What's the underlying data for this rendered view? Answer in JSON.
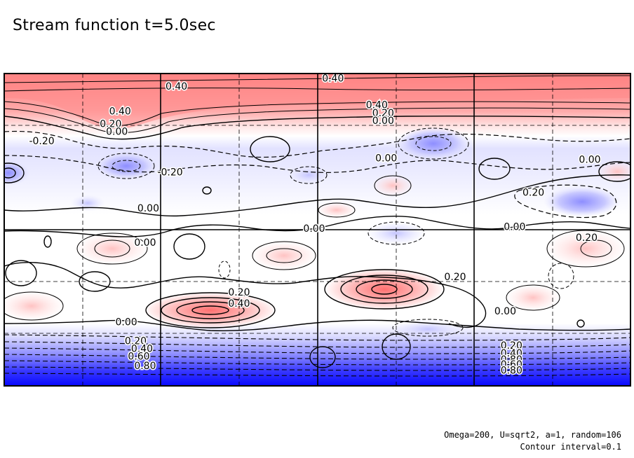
{
  "title": "Stream function t=5.0sec",
  "footer": {
    "params": "Omega=200, U=sqrt2, a=1, random=106",
    "contour": "Contour interval=0.1"
  },
  "chart_data": {
    "type": "heatmap",
    "title": "Stream function t=5.0sec",
    "field": "stream function",
    "contour_interval": 0.1,
    "value_range": [
      -1.0,
      0.5
    ],
    "colormap": {
      "negative": "#1010ff",
      "zero": "#ffffff",
      "positive": "#ff6060"
    },
    "negative_contours_dashed": true,
    "grid": true,
    "grid_columns": 8,
    "grid_rows": 6,
    "contour_labels": [
      {
        "text": "0.40",
        "cx": 0.05,
        "cy": 0.03
      },
      {
        "text": "0.40",
        "cx": -0.45,
        "cy": 0.08
      },
      {
        "text": "0.40",
        "cx": -0.63,
        "cy": 0.24
      },
      {
        "text": "0.40",
        "cx": 0.19,
        "cy": 0.2
      },
      {
        "text": "0.20",
        "cx": -0.66,
        "cy": 0.32
      },
      {
        "text": "0.20",
        "cx": 0.21,
        "cy": 0.25
      },
      {
        "text": "0.00",
        "cx": -0.64,
        "cy": 0.37
      },
      {
        "text": "0.00",
        "cx": 0.21,
        "cy": 0.3
      },
      {
        "text": "-0.20",
        "cx": -0.88,
        "cy": 0.43
      },
      {
        "text": "-0.20",
        "cx": -0.47,
        "cy": 0.63
      },
      {
        "text": "0.00",
        "cx": 0.22,
        "cy": 0.54
      },
      {
        "text": "0.00",
        "cx": 0.87,
        "cy": 0.55
      },
      {
        "text": "0.20",
        "cx": 0.69,
        "cy": 0.76
      },
      {
        "text": "0.00",
        "cx": -0.54,
        "cy": 0.86
      },
      {
        "text": "0.00",
        "cx": -0.01,
        "cy": 0.99
      },
      {
        "text": "0.00",
        "cx": 0.63,
        "cy": 0.98
      },
      {
        "text": "0.20",
        "cx": 0.86,
        "cy": 1.05
      },
      {
        "text": "0.00",
        "cx": -0.55,
        "cy": 1.08
      },
      {
        "text": "0.20",
        "cx": 0.44,
        "cy": 1.3
      },
      {
        "text": "0.20",
        "cx": -0.25,
        "cy": 1.4
      },
      {
        "text": "0.40",
        "cx": -0.25,
        "cy": 1.47
      },
      {
        "text": "0.00",
        "cx": 0.6,
        "cy": 1.52
      },
      {
        "text": "0.00",
        "cx": -0.61,
        "cy": 1.59
      },
      {
        "text": "0.20",
        "cx": -0.58,
        "cy": 1.71
      },
      {
        "text": "0.20",
        "cx": 0.62,
        "cy": 1.74
      },
      {
        "text": "0.40",
        "cx": -0.56,
        "cy": 1.76
      },
      {
        "text": "0.40",
        "cx": 0.62,
        "cy": 1.79
      },
      {
        "text": "0.60",
        "cx": -0.57,
        "cy": 1.81
      },
      {
        "text": "0.80",
        "cx": 0.62,
        "cy": 1.83
      },
      {
        "text": "0.60",
        "cx": 0.62,
        "cy": 1.86
      },
      {
        "text": "0.80",
        "cx": -0.55,
        "cy": 1.87
      },
      {
        "text": "0.80",
        "cx": 0.62,
        "cy": 1.9
      }
    ]
  }
}
